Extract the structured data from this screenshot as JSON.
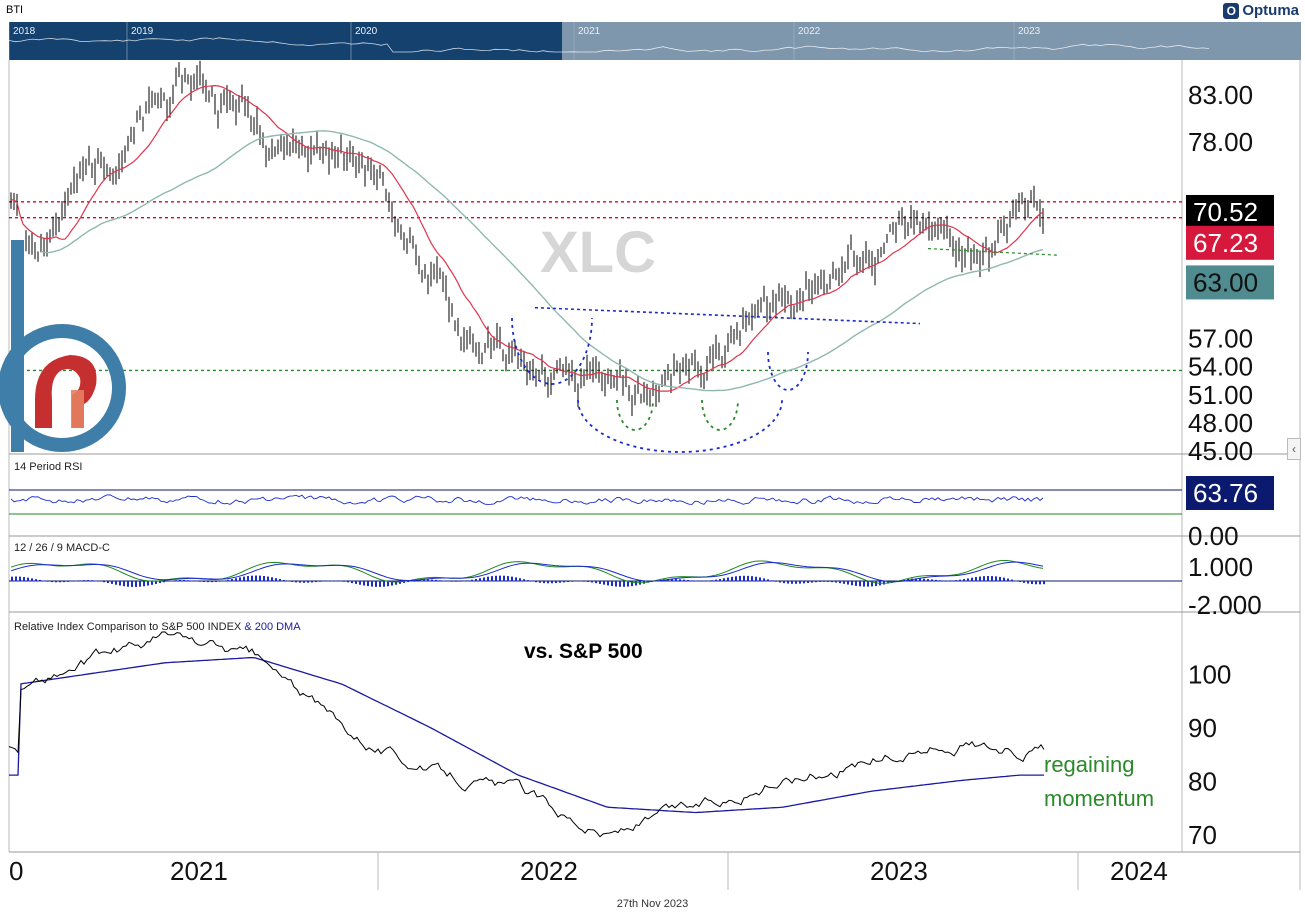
{
  "header": {
    "ticker": "BTI",
    "brand": "Optuma"
  },
  "navigator": {
    "years": [
      "2018",
      "2019",
      "2020",
      "2021",
      "2022",
      "2023"
    ]
  },
  "watermark": "XLC",
  "footer": {
    "date": "27th Nov 2023"
  },
  "panels": {
    "rsi": {
      "title": "14 Period RSI"
    },
    "macd": {
      "title": "12 / 26 / 9 MACD-C"
    },
    "relative": {
      "title_a": "Relative Index Comparison to S&P 500 INDEX",
      "title_b": "& 200 DMA"
    }
  },
  "annotations": {
    "vs": "vs. S&P 500",
    "regaining_1": "regaining",
    "regaining_2": "momentum"
  },
  "colors": {
    "navy": "#15416f",
    "price": "#000000",
    "ma_fast": "#e0344c",
    "ma_slow": "#8fb8b0",
    "red_line": "#e0002a",
    "green_line": "#2a8a2a",
    "blue_dots": "#1a2bd0",
    "label_last": "#000000",
    "label_fast": "#d6183c",
    "label_slow": "#4f8b8f",
    "label_rsi": "#0b1a6e"
  },
  "chart_data": [
    {
      "type": "line",
      "title": "",
      "x": [
        "2021-01",
        "2021-04",
        "2021-07",
        "2021-10",
        "2022-01",
        "2022-04",
        "2022-07",
        "2022-10",
        "2023-01",
        "2023-04",
        "2023-07",
        "2023-10",
        "2023-11"
      ],
      "series": [
        {
          "values": [
            66.0,
            76.5,
            84.5,
            79.0,
            75.0,
            58.0,
            52.0,
            50.0,
            56.5,
            63.5,
            67.5,
            66.0,
            70.52
          ]
        }
      ],
      "last_value": "70.52",
      "fast_ma_value": "67.23",
      "slow_ma_value": "63.00",
      "ylim": [
        45,
        86
      ],
      "y_ticks": [
        "83.00",
        "78.00",
        "70.52",
        "67.23",
        "63.00",
        "57.00",
        "54.00",
        "51.00",
        "48.00",
        "45.00"
      ],
      "horizontal_lines": [
        71.5,
        69.8,
        53.5
      ],
      "x_labels": [
        "2021",
        "2022",
        "2023",
        "2024"
      ]
    },
    {
      "type": "line",
      "title": "14 Period RSI",
      "last_value": "63.76",
      "y_ticks": [
        "0.00"
      ]
    },
    {
      "type": "bar",
      "title": "12 / 26 / 9 MACD-C",
      "y_ticks": [
        "1.000",
        "-2.000"
      ]
    },
    {
      "type": "line",
      "title": "Relative Index Comparison to S&P 500 INDEX & 200 DMA",
      "x": [
        "2021-01",
        "2021-06",
        "2021-09",
        "2021-12",
        "2022-03",
        "2022-06",
        "2022-09",
        "2022-12",
        "2023-03",
        "2023-06",
        "2023-09",
        "2023-11"
      ],
      "series": [
        {
          "values": [
            97,
            107,
            103,
            90,
            82,
            78,
            70,
            75,
            80,
            84,
            87,
            86
          ]
        },
        {
          "values": [
            98,
            102,
            103,
            98,
            90,
            81,
            75,
            74,
            75,
            78,
            80,
            81
          ]
        }
      ],
      "ylim": [
        67,
        110
      ],
      "y_ticks": [
        "100",
        "90",
        "80",
        "70"
      ]
    }
  ]
}
